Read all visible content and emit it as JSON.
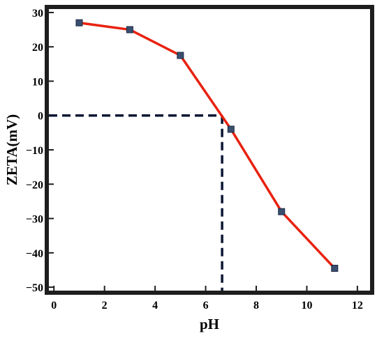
{
  "chart_data": {
    "type": "line",
    "title": "",
    "xlabel": "pH",
    "ylabel": "ZETA(mV)",
    "xlim": [
      -0.2,
      12.5
    ],
    "ylim": [
      -51,
      31
    ],
    "x_ticks": [
      0,
      2,
      4,
      6,
      8,
      10,
      12
    ],
    "y_ticks": [
      30,
      20,
      10,
      0,
      -10,
      -20,
      -30,
      -40,
      -50
    ],
    "x_tick_labels": [
      "0",
      "2",
      "4",
      "6",
      "8",
      "10",
      "12"
    ],
    "y_tick_labels": [
      "30",
      "20",
      "10",
      "0",
      "−10",
      "−20",
      "−30",
      "−40",
      "−50"
    ],
    "series": [
      {
        "x": [
          1.0,
          3.0,
          5.0,
          7.0,
          9.0,
          11.1
        ],
        "values": [
          27.0,
          25.0,
          17.5,
          -4.0,
          -28.0,
          -44.5
        ],
        "line_color": "#e8220f",
        "marker_color": "#3a4f6e"
      }
    ],
    "reference_point": {
      "x": 6.65,
      "y": 0,
      "color": "#0b1734"
    },
    "grid": false,
    "legend": "none"
  }
}
